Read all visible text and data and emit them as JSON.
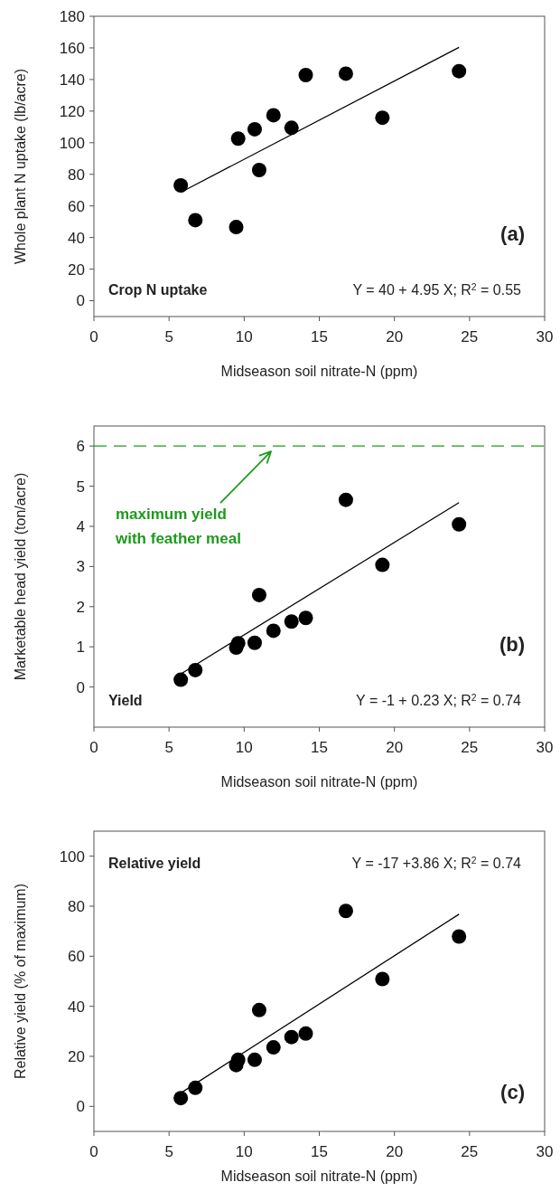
{
  "chart_data": [
    {
      "type": "scatter",
      "xlabel": "Midseason soil nitrate-N (ppm)",
      "ylabel": "Whole plant N uptake (lb/acre)",
      "xlim": [
        0,
        30
      ],
      "xticks": [
        0,
        5,
        10,
        15,
        20,
        25,
        30
      ],
      "ylim": [
        -10,
        180
      ],
      "yticks": [
        0,
        20,
        40,
        60,
        80,
        100,
        120,
        140,
        160,
        180
      ],
      "annotations": [
        "(a)",
        "Crop N uptake",
        "Y = 40 + 4.95 X; R$^{2}$ = 0.55"
      ],
      "series": [
        {
          "color": "#000000",
          "marker": "circle",
          "x": [
            5.78,
            6.75,
            9.47,
            9.6,
            10.7,
            11.0,
            11.95,
            13.15,
            14.1,
            16.77,
            19.2,
            24.3
          ],
          "values": [
            73,
            51,
            46.6,
            102.6,
            108.5,
            82.7,
            117.4,
            109.4,
            142.8,
            143.7,
            115.8,
            145.3
          ]
        },
        {
          "type": "line",
          "marker": "none",
          "color": "#000000",
          "x": [
            5.8,
            24.3
          ],
          "values": [
            68.7,
            160.3
          ]
        }
      ]
    },
    {
      "type": "scatter",
      "xlabel": "Midseason soil nitrate-N (ppm)",
      "ylabel": "Marketable head yield (ton/acre)",
      "xlim": [
        0,
        30
      ],
      "xticks": [
        0,
        5,
        10,
        15,
        20,
        25,
        30
      ],
      "ylim": [
        -1,
        6.5
      ],
      "yticks": [
        0,
        1,
        2,
        3,
        4,
        5,
        6
      ],
      "annotations": [
        "(b)",
        "Yield",
        "Y = -1 + 0.23 X;  R$^{2}$ = 0.74",
        "maximum yield\nwith feather meal"
      ],
      "ref_lines": [
        {
          "axis": "y",
          "value": 6,
          "color": "#1e9a1e",
          "line_style": "dashed"
        }
      ],
      "series": [
        {
          "color": "#000000",
          "marker": "circle",
          "x": [
            5.78,
            6.75,
            9.47,
            9.6,
            10.7,
            11.0,
            11.95,
            13.15,
            14.1,
            16.77,
            19.2,
            24.3
          ],
          "values": [
            0.18,
            0.42,
            0.98,
            1.09,
            1.1,
            2.29,
            1.4,
            1.63,
            1.72,
            4.66,
            3.04,
            4.05
          ]
        },
        {
          "type": "line",
          "marker": "none",
          "color": "#000000",
          "x": [
            5.8,
            24.3
          ],
          "values": [
            0.33,
            4.59
          ]
        }
      ]
    },
    {
      "type": "scatter",
      "xlabel": "Midseason soil nitrate-N (ppm)",
      "ylabel": "Relative yield (% of maximum)",
      "xlim": [
        0,
        30
      ],
      "xticks": [
        0,
        5,
        10,
        15,
        20,
        25,
        30
      ],
      "ylim": [
        -10,
        110
      ],
      "yticks": [
        0,
        20,
        40,
        60,
        80,
        100
      ],
      "annotations": [
        "(c)",
        "Relative yield",
        "Y = -17 +3.86 X; R$^{2}$ = 0.74"
      ],
      "series": [
        {
          "color": "#000000",
          "marker": "circle",
          "x": [
            5.78,
            6.75,
            9.47,
            9.6,
            10.7,
            11.0,
            11.95,
            13.15,
            14.1,
            16.77,
            19.2,
            24.3
          ],
          "values": [
            3.3,
            7.4,
            16.5,
            18.6,
            18.6,
            38.5,
            23.6,
            27.7,
            29.1,
            78.1,
            50.9,
            67.9
          ]
        },
        {
          "type": "line",
          "marker": "none",
          "color": "#000000",
          "x": [
            5.8,
            24.3
          ],
          "values": [
            5.4,
            76.8
          ]
        }
      ]
    }
  ]
}
